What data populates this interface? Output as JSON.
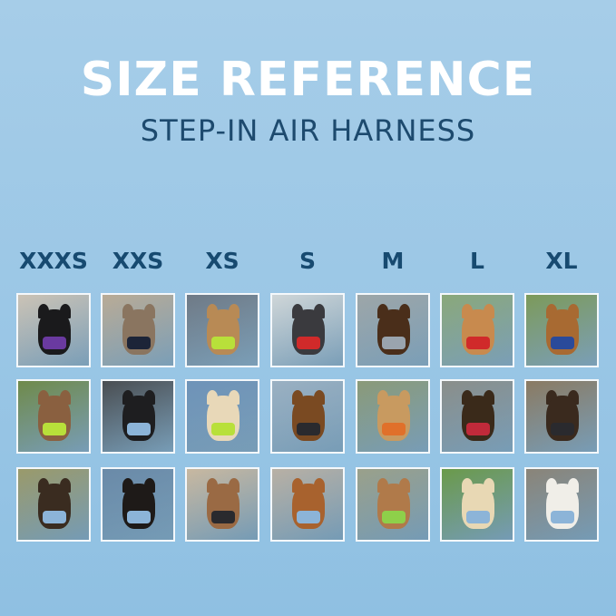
{
  "header": {
    "title": "SIZE REFERENCE",
    "subtitle": "STEP-IN AIR HARNESS"
  },
  "sizes": [
    "XXXS",
    "XXS",
    "XS",
    "S",
    "M",
    "L",
    "XL"
  ],
  "photos": [
    [
      {
        "bg": "#cbc3b6",
        "pet": "#1a1a1c",
        "harness": "#6a3aa0"
      },
      {
        "bg": "#b9ab96",
        "pet": "#8a7560",
        "harness": "#1c2438"
      },
      {
        "bg": "#6f7a86",
        "pet": "#b88a55",
        "harness": "#b8e03a"
      },
      {
        "bg": "#cfd6d8",
        "pet": "#3a3a3e",
        "harness": "#d02a2a"
      },
      {
        "bg": "#9da6a8",
        "pet": "#4a2e1a",
        "harness": "#9aa4ae"
      },
      {
        "bg": "#8aa87a",
        "pet": "#c88a4e",
        "harness": "#d02a2a"
      },
      {
        "bg": "#7c9a5a",
        "pet": "#a86a32",
        "harness": "#2a4a9a"
      }
    ],
    [
      {
        "bg": "#6f8a4a",
        "pet": "#8a6040",
        "harness": "#b8e03a"
      },
      {
        "bg": "#4a4e52",
        "pet": "#1e1e20",
        "harness": "#8cb4d8"
      },
      {
        "bg": "#6e93b8",
        "pet": "#e8d8b8",
        "harness": "#b8e03a"
      },
      {
        "bg": "#9ab0c2",
        "pet": "#7a4a22",
        "harness": "#2a2a2e"
      },
      {
        "bg": "#8a9a78",
        "pet": "#c89a60",
        "harness": "#e0702a"
      },
      {
        "bg": "#8a8e8a",
        "pet": "#3a2a1a",
        "harness": "#c02a3a"
      },
      {
        "bg": "#8a7a62",
        "pet": "#3a2a1e",
        "harness": "#2a2a2e"
      }
    ],
    [
      {
        "bg": "#9a9a6a",
        "pet": "#3a2c20",
        "harness": "#8cb4d8"
      },
      {
        "bg": "#6a8aa8",
        "pet": "#1e1a18",
        "harness": "#8cb4d8"
      },
      {
        "bg": "#c8b8a0",
        "pet": "#9a6a44",
        "harness": "#2a2a2e"
      },
      {
        "bg": "#b8b0a4",
        "pet": "#a8622e",
        "harness": "#8cb4d8"
      },
      {
        "bg": "#9aa08a",
        "pet": "#b07a4a",
        "harness": "#8ed04a"
      },
      {
        "bg": "#6a9a4a",
        "pet": "#e8d8b4",
        "harness": "#8cb4d8"
      },
      {
        "bg": "#8a8478",
        "pet": "#f0eee8",
        "harness": "#8cb4d8"
      }
    ]
  ]
}
